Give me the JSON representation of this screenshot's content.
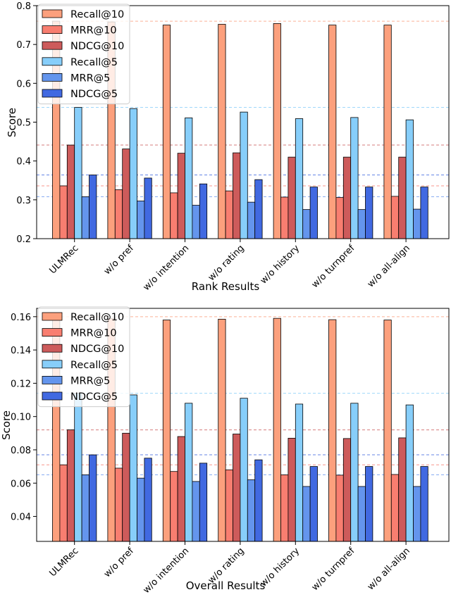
{
  "chart_data": [
    {
      "type": "bar",
      "xlabel": "Rank Results",
      "ylabel": "Score",
      "ylim": [
        0.2,
        0.8
      ],
      "yticks": [
        0.2,
        0.3,
        0.4,
        0.5,
        0.6,
        0.7,
        0.8
      ],
      "ytick_labels": [
        "0.2",
        "0.3",
        "0.4",
        "0.5",
        "0.6",
        "0.7",
        "0.8"
      ],
      "legend_position": "top-left",
      "grid": false,
      "categories": [
        "ULMRec",
        "w/o pref",
        "w/o intention",
        "w/o rating",
        "w/o history",
        "w/o turnpref",
        "w/o all-align"
      ],
      "series": [
        {
          "name": "Recall@10",
          "color": "#fca07d",
          "values": [
            0.76,
            0.758,
            0.75,
            0.752,
            0.754,
            0.75,
            0.75
          ]
        },
        {
          "name": "MRR@10",
          "color": "#f87e70",
          "values": [
            0.336,
            0.326,
            0.318,
            0.323,
            0.307,
            0.306,
            0.309
          ]
        },
        {
          "name": "NDCG@10",
          "color": "#cd5b5b",
          "values": [
            0.441,
            0.431,
            0.42,
            0.421,
            0.41,
            0.41,
            0.41
          ]
        },
        {
          "name": "Recall@5",
          "color": "#87cefa",
          "values": [
            0.538,
            0.535,
            0.511,
            0.526,
            0.509,
            0.512,
            0.506
          ]
        },
        {
          "name": "MRR@5",
          "color": "#6495ed",
          "values": [
            0.308,
            0.297,
            0.286,
            0.294,
            0.275,
            0.275,
            0.276
          ]
        },
        {
          "name": "NDCG@5",
          "color": "#4169e1",
          "values": [
            0.364,
            0.356,
            0.341,
            0.352,
            0.333,
            0.333,
            0.333
          ]
        }
      ],
      "reference_lines": [
        {
          "value": 0.76,
          "color": "#fca07d"
        },
        {
          "value": 0.538,
          "color": "#87cefa"
        },
        {
          "value": 0.441,
          "color": "#cd5b5b"
        },
        {
          "value": 0.364,
          "color": "#4169e1"
        },
        {
          "value": 0.336,
          "color": "#f87e70"
        },
        {
          "value": 0.308,
          "color": "#6495ed"
        }
      ]
    },
    {
      "type": "bar",
      "xlabel": "Overall Results",
      "ylabel": "Score",
      "ylim": [
        0.025,
        0.165
      ],
      "yticks": [
        0.04,
        0.06,
        0.08,
        0.1,
        0.12,
        0.14,
        0.16
      ],
      "ytick_labels": [
        "0.04",
        "0.06",
        "0.08",
        "0.10",
        "0.12",
        "0.14",
        "0.16"
      ],
      "legend_position": "top-left",
      "grid": false,
      "categories": [
        "ULMRec",
        "w/o pref",
        "w/o intention",
        "w/o rating",
        "w/o history",
        "w/o turnpref",
        "w/o all-align"
      ],
      "series": [
        {
          "name": "Recall@10",
          "color": "#fca07d",
          "values": [
            0.16,
            0.159,
            0.158,
            0.1585,
            0.159,
            0.1582,
            0.158
          ]
        },
        {
          "name": "MRR@10",
          "color": "#f87e70",
          "values": [
            0.071,
            0.069,
            0.067,
            0.068,
            0.065,
            0.0648,
            0.0652
          ]
        },
        {
          "name": "NDCG@10",
          "color": "#cd5b5b",
          "values": [
            0.092,
            0.09,
            0.088,
            0.0895,
            0.087,
            0.0868,
            0.0872
          ]
        },
        {
          "name": "Recall@5",
          "color": "#87cefa",
          "values": [
            0.114,
            0.113,
            0.108,
            0.111,
            0.1075,
            0.108,
            0.107
          ]
        },
        {
          "name": "MRR@5",
          "color": "#6495ed",
          "values": [
            0.065,
            0.063,
            0.061,
            0.062,
            0.058,
            0.058,
            0.058
          ]
        },
        {
          "name": "NDCG@5",
          "color": "#4169e1",
          "values": [
            0.077,
            0.075,
            0.072,
            0.074,
            0.07,
            0.07,
            0.07
          ]
        }
      ],
      "reference_lines": [
        {
          "value": 0.16,
          "color": "#fca07d"
        },
        {
          "value": 0.114,
          "color": "#87cefa"
        },
        {
          "value": 0.092,
          "color": "#cd5b5b"
        },
        {
          "value": 0.077,
          "color": "#4169e1"
        },
        {
          "value": 0.071,
          "color": "#f87e70"
        },
        {
          "value": 0.065,
          "color": "#6495ed"
        }
      ]
    }
  ]
}
